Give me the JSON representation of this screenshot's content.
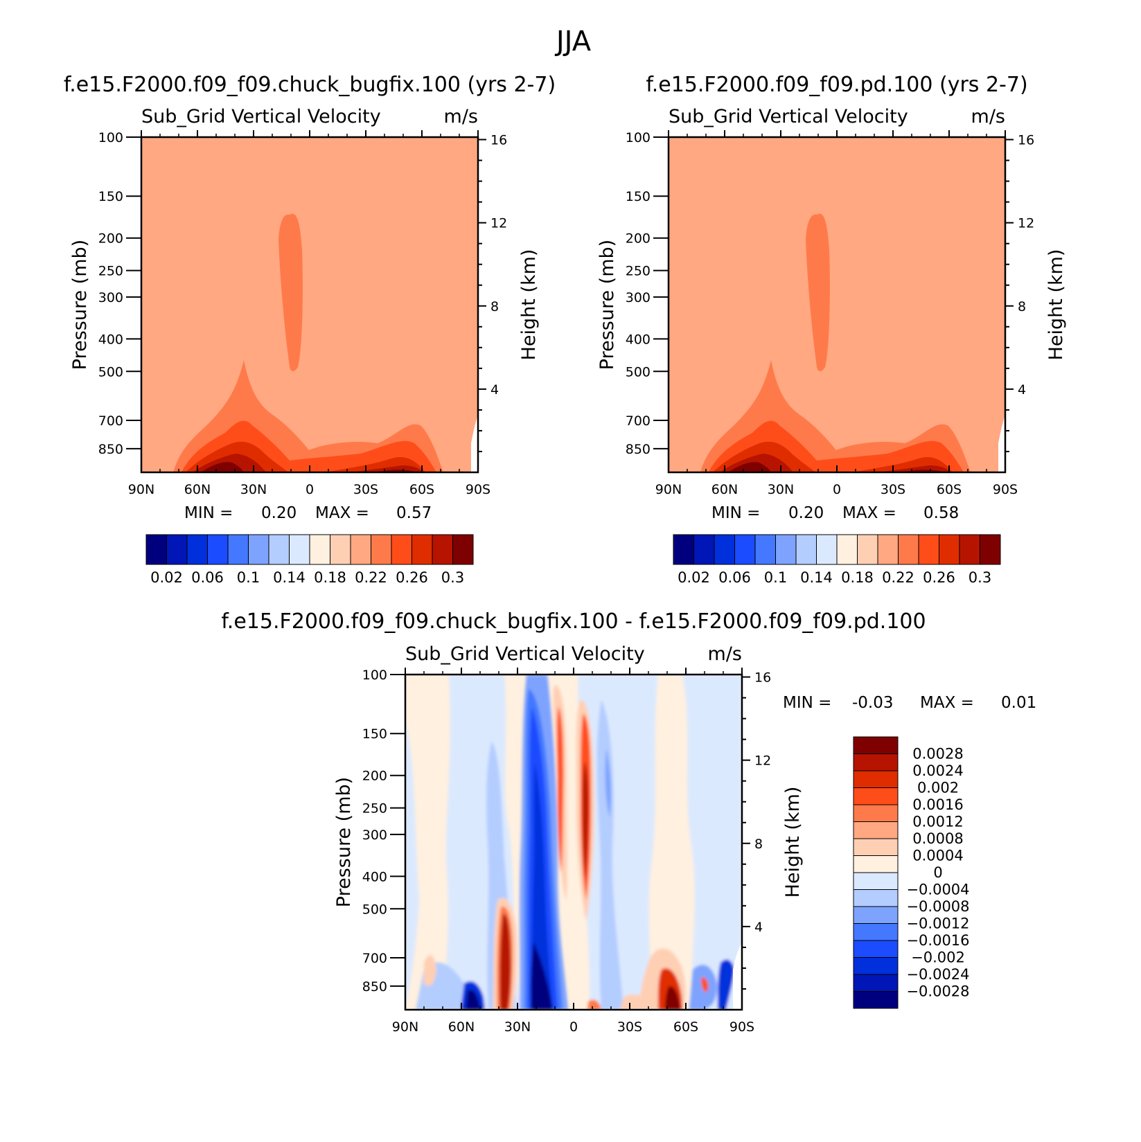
{
  "figure_title": "JJA",
  "chart_data": [
    {
      "type": "heatmap",
      "title": "f.e15.F2000.f09_f09.chuck_bugfix.100 (yrs 2-7)",
      "variable": "Sub_Grid Vertical Velocity",
      "units": "m/s",
      "xlabel": "",
      "ylabel": "Pressure (mb)",
      "ylabel_right": "Height (km)",
      "x_ticks": [
        "90N",
        "60N",
        "30N",
        "0",
        "30S",
        "60S",
        "90S"
      ],
      "y_ticks": [
        "100",
        "150",
        "200",
        "250",
        "300",
        "400",
        "500",
        "700",
        "850"
      ],
      "y_ticks_right": [
        "16",
        "12",
        "8",
        "4"
      ],
      "xlim": [
        "90N",
        "90S"
      ],
      "ylim": [
        100,
        1000
      ],
      "y_scale": "log",
      "stats": {
        "min_label": "MIN =",
        "min_value": "0.20",
        "max_label": "MAX =",
        "max_value": "0.57"
      },
      "colorbar": {
        "colors": [
          "#00007f",
          "#0016b6",
          "#0030dc",
          "#1b4cff",
          "#4378ff",
          "#7ea3ff",
          "#b4cdff",
          "#dbe9ff",
          "#fff0e0",
          "#ffcfb4",
          "#ffa882",
          "#ff7a4a",
          "#ff4d1a",
          "#e02d00",
          "#b61400",
          "#7f0000"
        ],
        "labels": [
          "0.02",
          "0.06",
          "0.1",
          "0.14",
          "0.18",
          "0.22",
          "0.26",
          "0.3"
        ],
        "orientation": "horizontal"
      },
      "grid": false
    },
    {
      "type": "heatmap",
      "title": "f.e15.F2000.f09_f09.pd.100 (yrs 2-7)",
      "variable": "Sub_Grid Vertical Velocity",
      "units": "m/s",
      "xlabel": "",
      "ylabel": "Pressure (mb)",
      "ylabel_right": "Height (km)",
      "x_ticks": [
        "90N",
        "60N",
        "30N",
        "0",
        "30S",
        "60S",
        "90S"
      ],
      "y_ticks": [
        "100",
        "150",
        "200",
        "250",
        "300",
        "400",
        "500",
        "700",
        "850"
      ],
      "y_ticks_right": [
        "16",
        "12",
        "8",
        "4"
      ],
      "xlim": [
        "90N",
        "90S"
      ],
      "ylim": [
        100,
        1000
      ],
      "y_scale": "log",
      "stats": {
        "min_label": "MIN =",
        "min_value": "0.20",
        "max_label": "MAX =",
        "max_value": "0.58"
      },
      "colorbar": {
        "colors": [
          "#00007f",
          "#0016b6",
          "#0030dc",
          "#1b4cff",
          "#4378ff",
          "#7ea3ff",
          "#b4cdff",
          "#dbe9ff",
          "#fff0e0",
          "#ffcfb4",
          "#ffa882",
          "#ff7a4a",
          "#ff4d1a",
          "#e02d00",
          "#b61400",
          "#7f0000"
        ],
        "labels": [
          "0.02",
          "0.06",
          "0.1",
          "0.14",
          "0.18",
          "0.22",
          "0.26",
          "0.3"
        ],
        "orientation": "horizontal"
      },
      "grid": false
    },
    {
      "type": "heatmap",
      "title": "f.e15.F2000.f09_f09.chuck_bugfix.100 - f.e15.F2000.f09_f09.pd.100",
      "variable": "Sub_Grid Vertical Velocity",
      "units": "m/s",
      "xlabel": "",
      "ylabel": "Pressure (mb)",
      "ylabel_right": "Height (km)",
      "x_ticks": [
        "90N",
        "60N",
        "30N",
        "0",
        "30S",
        "60S",
        "90S"
      ],
      "y_ticks": [
        "100",
        "150",
        "200",
        "250",
        "300",
        "400",
        "500",
        "700",
        "850"
      ],
      "y_ticks_right": [
        "16",
        "12",
        "8",
        "4"
      ],
      "xlim": [
        "90N",
        "90S"
      ],
      "ylim": [
        100,
        1000
      ],
      "y_scale": "log",
      "stats": {
        "min_label": "MIN =",
        "min_value": "-0.03",
        "max_label": "MAX =",
        "max_value": "0.01"
      },
      "colorbar": {
        "colors": [
          "#7f0000",
          "#b61400",
          "#e02d00",
          "#ff4d1a",
          "#ff7a4a",
          "#ffa882",
          "#ffcfb4",
          "#fff0e0",
          "#dbe9ff",
          "#b4cdff",
          "#7ea3ff",
          "#4378ff",
          "#1b4cff",
          "#0030dc",
          "#0016b6",
          "#00007f"
        ],
        "labels": [
          "0.0028",
          "0.0024",
          "0.002",
          "0.0016",
          "0.0012",
          "0.0008",
          "0.0004",
          "0",
          "-0.0004",
          "-0.0008",
          "-0.0012",
          "-0.0016",
          "-0.002",
          "-0.0024",
          "-0.0028"
        ],
        "orientation": "vertical"
      },
      "grid": false
    }
  ]
}
